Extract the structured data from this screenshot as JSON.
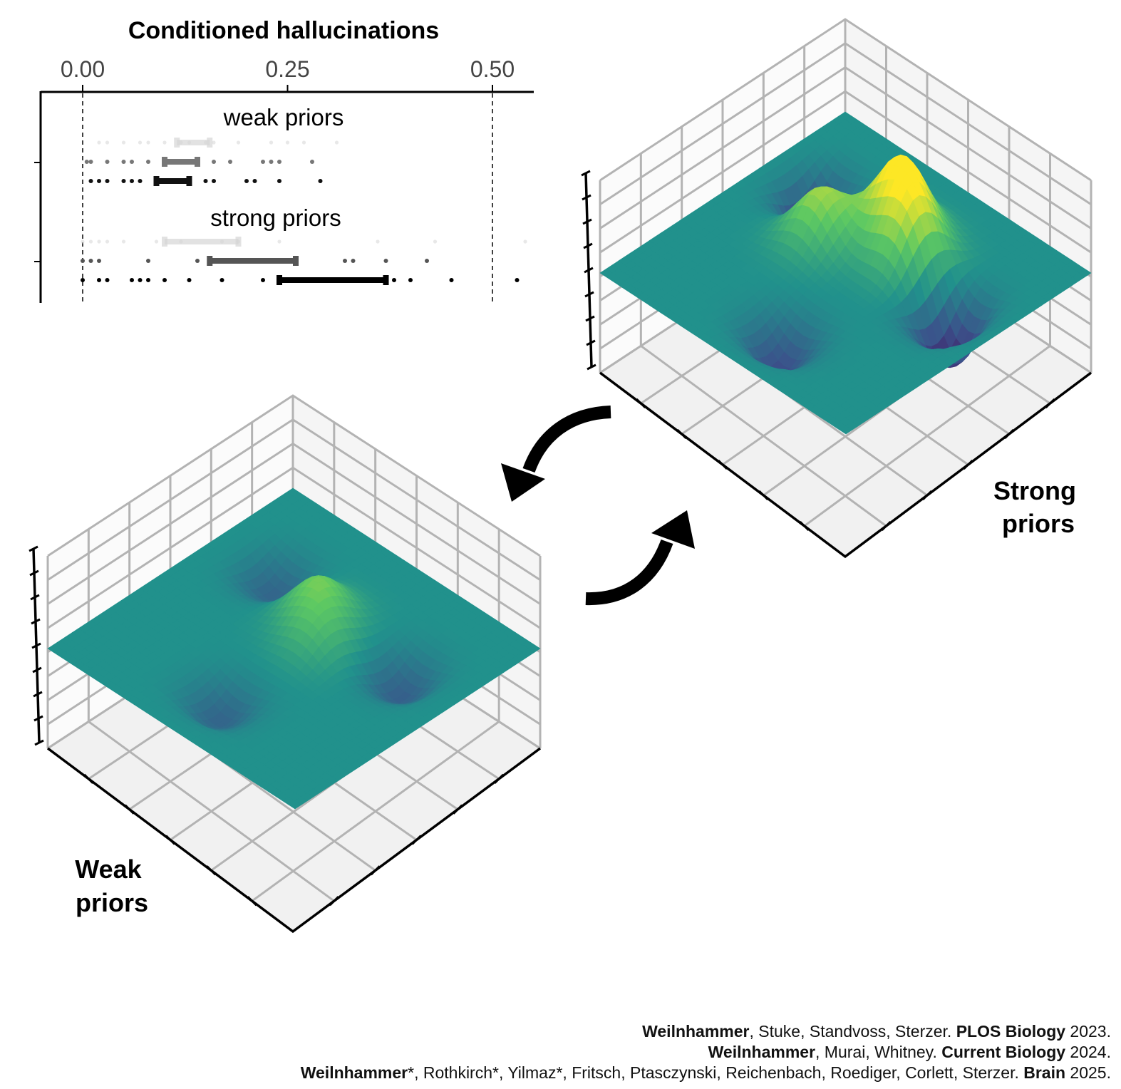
{
  "dotplot": {
    "title": "Conditioned hallucinations",
    "x_ticks": [
      "0.00",
      "0.25",
      "0.50"
    ],
    "groups": [
      {
        "label": "weak priors"
      },
      {
        "label": "strong priors"
      }
    ]
  },
  "surfaces": {
    "strong_label": [
      "Strong",
      "priors"
    ],
    "weak_label": [
      "Weak",
      "priors"
    ]
  },
  "references": [
    {
      "author": "Weilnhammer",
      "rest": ", Stuke, Standvoss, Sterzer. ",
      "journal": "PLOS Biology",
      "year": " 2023."
    },
    {
      "author": "Weilnhammer",
      "rest": ", Murai, Whitney. ",
      "journal": "Current Biology",
      "year": " 2024."
    },
    {
      "author": "Weilnhammer",
      "rest": "*, Rothkirch*, Yilmaz*, Fritsch, Ptasczynski, Reichenbach, Roediger, Corlett, Sterzer. ",
      "journal": "Brain",
      "year": " 2025."
    }
  ],
  "chart_data": [
    {
      "type": "scatter",
      "title": "Conditioned hallucinations",
      "xlim": [
        -0.05,
        0.55
      ],
      "x_ticks": [
        0.0,
        0.25,
        0.5
      ],
      "reference_lines": [
        0.0,
        0.5
      ],
      "series": [
        {
          "group": "weak priors",
          "row": 1,
          "shade": "#d6d6d6",
          "points": [
            0.02,
            0.03,
            0.05,
            0.07,
            0.08,
            0.1,
            0.12,
            0.13,
            0.15,
            0.16,
            0.19,
            0.23,
            0.25,
            0.27,
            0.31
          ],
          "interval": [
            0.115,
            0.155
          ]
        },
        {
          "group": "weak priors",
          "row": 2,
          "shade": "#777777",
          "points": [
            0.005,
            0.01,
            0.03,
            0.05,
            0.06,
            0.08,
            0.1,
            0.11,
            0.12,
            0.14,
            0.16,
            0.18,
            0.22,
            0.23,
            0.24,
            0.28
          ],
          "interval": [
            0.1,
            0.14
          ]
        },
        {
          "group": "weak priors",
          "row": 3,
          "shade": "#111111",
          "points": [
            0.01,
            0.02,
            0.03,
            0.05,
            0.06,
            0.07,
            0.09,
            0.1,
            0.13,
            0.15,
            0.16,
            0.2,
            0.21,
            0.24,
            0.29
          ],
          "interval": [
            0.09,
            0.13
          ]
        },
        {
          "group": "strong priors",
          "row": 1,
          "shade": "#d6d6d6",
          "points": [
            0.0,
            0.01,
            0.02,
            0.03,
            0.05,
            0.09,
            0.12,
            0.17,
            0.19,
            0.24,
            0.36,
            0.43,
            0.54
          ],
          "interval": [
            0.1,
            0.19
          ]
        },
        {
          "group": "strong priors",
          "row": 2,
          "shade": "#555555",
          "points": [
            0.0,
            0.01,
            0.02,
            0.08,
            0.14,
            0.16,
            0.2,
            0.26,
            0.32,
            0.33,
            0.37,
            0.42
          ],
          "interval": [
            0.155,
            0.26
          ]
        },
        {
          "group": "strong priors",
          "row": 3,
          "shade": "#000000",
          "points": [
            0.0,
            0.02,
            0.03,
            0.06,
            0.07,
            0.08,
            0.1,
            0.13,
            0.17,
            0.22,
            0.26,
            0.3,
            0.35,
            0.38,
            0.4,
            0.45,
            0.53
          ],
          "interval": [
            0.24,
            0.37
          ]
        }
      ]
    },
    {
      "type": "surface",
      "label": "Strong priors",
      "colormap": [
        "#440154",
        "#3b528b",
        "#21918c",
        "#5ec962",
        "#fde725"
      ],
      "baseline": 0.0,
      "bumps": [
        {
          "u": 0.5,
          "v": 0.28,
          "amp": 1.1
        },
        {
          "u": 0.35,
          "v": 0.45,
          "amp": 0.8
        },
        {
          "u": 0.62,
          "v": 0.35,
          "amp": 0.9
        },
        {
          "u": 0.16,
          "v": 0.3,
          "amp": -0.7
        },
        {
          "u": 0.82,
          "v": 0.4,
          "amp": -0.9
        },
        {
          "u": 0.55,
          "v": 0.82,
          "amp": -0.6
        }
      ]
    },
    {
      "type": "surface",
      "label": "Weak priors",
      "colormap": [
        "#440154",
        "#3b528b",
        "#21918c",
        "#5ec962",
        "#fde725"
      ],
      "baseline": 0.0,
      "bumps": [
        {
          "u": 0.45,
          "v": 0.35,
          "amp": 0.55
        },
        {
          "u": 0.55,
          "v": 0.45,
          "amp": 0.4
        },
        {
          "u": 0.22,
          "v": 0.3,
          "amp": -0.4
        },
        {
          "u": 0.78,
          "v": 0.35,
          "amp": -0.45
        },
        {
          "u": 0.5,
          "v": 0.8,
          "amp": -0.4
        }
      ]
    }
  ]
}
